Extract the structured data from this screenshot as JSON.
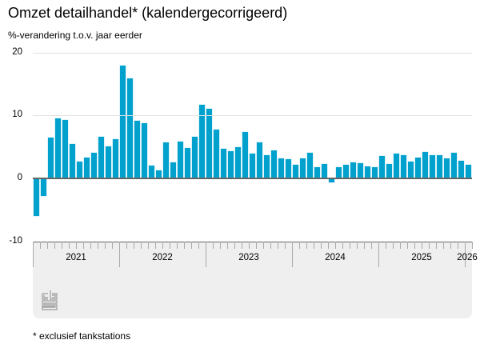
{
  "header": {
    "title": "Omzet detailhandel* (kalendergecorrigeerd)",
    "subtitle": "%-verandering t.o.v. jaar eerder"
  },
  "footer": {
    "footnote": "* exclusief tankstations",
    "logo": "cbs-logo-icon"
  },
  "colors": {
    "bar": "#00a1cd",
    "zero_line": "#666666",
    "gridline": "#e2e2e2",
    "axis_panel": "#efefef"
  },
  "chart_data": {
    "type": "bar",
    "title": "Omzet detailhandel* (kalendergecorrigeerd)",
    "subtitle": "%-verandering t.o.v. jaar eerder",
    "xlabel": "",
    "ylabel": "%-verandering t.o.v. jaar eerder",
    "ylim": [
      -10,
      20
    ],
    "yticks": [
      "20",
      "10",
      "0",
      "-10"
    ],
    "year_labels": [
      "2021",
      "2022",
      "2023",
      "2024",
      "2025",
      "2026"
    ],
    "grid": true,
    "legend": null,
    "categories": [
      "2021-01",
      "2021-02",
      "2021-03",
      "2021-04",
      "2021-05",
      "2021-06",
      "2021-07",
      "2021-08",
      "2021-09",
      "2021-10",
      "2021-11",
      "2021-12",
      "2022-01",
      "2022-02",
      "2022-03",
      "2022-04",
      "2022-05",
      "2022-06",
      "2022-07",
      "2022-08",
      "2022-09",
      "2022-10",
      "2022-11",
      "2022-12",
      "2023-01",
      "2023-02",
      "2023-03",
      "2023-04",
      "2023-05",
      "2023-06",
      "2023-07",
      "2023-08",
      "2023-09",
      "2023-10",
      "2023-11",
      "2023-12",
      "2024-01",
      "2024-02",
      "2024-03",
      "2024-04",
      "2024-05",
      "2024-06",
      "2024-07",
      "2024-08",
      "2024-09",
      "2024-10",
      "2024-11",
      "2024-12",
      "2025-01",
      "2025-02",
      "2025-03",
      "2025-04",
      "2025-05",
      "2025-06",
      "2025-07",
      "2025-08",
      "2025-09",
      "2025-10",
      "2025-11",
      "2025-12",
      "2026-01"
    ],
    "values": [
      -6.0,
      -2.8,
      6.5,
      9.5,
      9.3,
      5.5,
      2.7,
      3.3,
      4.1,
      6.6,
      5.1,
      6.2,
      17.9,
      15.9,
      9.2,
      8.8,
      2.0,
      1.3,
      5.7,
      2.6,
      5.9,
      4.8,
      6.6,
      11.7,
      11.1,
      7.8,
      4.7,
      4.3,
      4.9,
      7.4,
      3.9,
      5.7,
      3.7,
      4.5,
      3.2,
      3.1,
      2.2,
      3.2,
      4.1,
      1.8,
      2.3,
      -0.6,
      1.8,
      2.2,
      2.6,
      2.4,
      1.9,
      1.8,
      3.5,
      2.3,
      3.9,
      3.7,
      2.7,
      3.3,
      4.2,
      3.7,
      3.7,
      3.2,
      4.1,
      2.8,
      2.1
    ],
    "footnote": "* exclusief tankstations"
  }
}
